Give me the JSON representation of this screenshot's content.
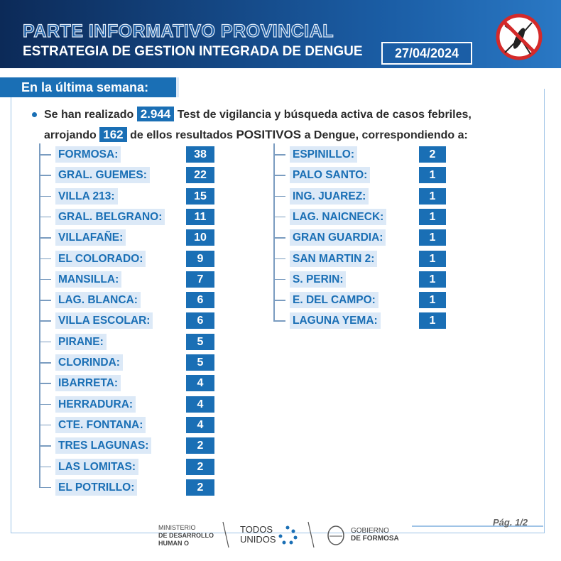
{
  "header": {
    "title": "PARTE INFORMATIVO PROVINCIAL",
    "subtitle": "ESTRATEGIA DE GESTION INTEGRADA DE DENGUE",
    "date": "27/04/2024"
  },
  "section": "En la última semana:",
  "summary": {
    "part1": "Se han realizado",
    "tests": "2.944",
    "part2": "Test de vigilancia y búsqueda activa de casos febriles,",
    "part3": "arrojando",
    "positives": "162",
    "part4": "de ellos resultados",
    "emphasis": "POSITIVOS",
    "part5": "a Dengue, correspondiendo a:"
  },
  "left_list": [
    {
      "place": "FORMOSA:",
      "cases": 38
    },
    {
      "place": "GRAL. GUEMES:",
      "cases": 22
    },
    {
      "place": "VILLA 213:",
      "cases": 15
    },
    {
      "place": "GRAL. BELGRANO:",
      "cases": 11
    },
    {
      "place": "VILLAFAÑE:",
      "cases": 10
    },
    {
      "place": "EL COLORADO:",
      "cases": 9
    },
    {
      "place": "MANSILLA:",
      "cases": 7
    },
    {
      "place": "LAG. BLANCA:",
      "cases": 6
    },
    {
      "place": "VILLA ESCOLAR:",
      "cases": 6
    },
    {
      "place": "PIRANE:",
      "cases": 5
    },
    {
      "place": "CLORINDA:",
      "cases": 5
    },
    {
      "place": "IBARRETA:",
      "cases": 4
    },
    {
      "place": "HERRADURA:",
      "cases": 4
    },
    {
      "place": "CTE. FONTANA:",
      "cases": 4
    },
    {
      "place": "TRES LAGUNAS:",
      "cases": 2
    },
    {
      "place": "LAS LOMITAS:",
      "cases": 2
    },
    {
      "place": "EL POTRILLO:",
      "cases": 2
    }
  ],
  "right_list": [
    {
      "place": "ESPINILLO:",
      "cases": 2
    },
    {
      "place": "PALO SANTO:",
      "cases": 1
    },
    {
      "place": "ING. JUAREZ:",
      "cases": 1
    },
    {
      "place": "LAG. NAICNECK:",
      "cases": 1
    },
    {
      "place": "GRAN GUARDIA:",
      "cases": 1
    },
    {
      "place": "SAN MARTIN 2:",
      "cases": 1
    },
    {
      "place": "S. PERIN:",
      "cases": 1
    },
    {
      "place": "E. DEL CAMPO:",
      "cases": 1
    },
    {
      "place": "LAGUNA YEMA:",
      "cases": 1
    }
  ],
  "footer": {
    "page": "Pág. 1/2",
    "ministry_line1": "MINISTERIO",
    "ministry_line2": "DE DESARROLLO",
    "ministry_line3": "HUMAN O",
    "slogan_line1": "TODOS",
    "slogan_line2": "UNIDOS",
    "gov_line1": "GOBIERNO",
    "gov_line2": "DE FORMOSA"
  }
}
